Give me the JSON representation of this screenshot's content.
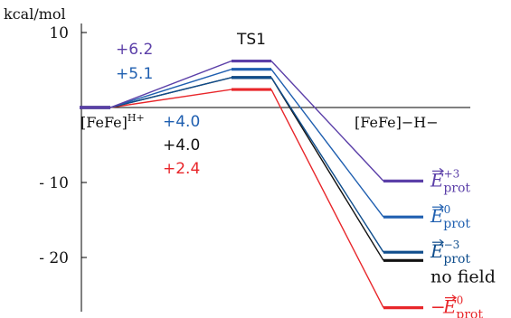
{
  "chart_data": {
    "type": "line",
    "title": "",
    "xlabel": "",
    "ylabel": "kcal/mol",
    "ylim": [
      -28,
      10
    ],
    "yticks": [
      {
        "value": 10,
        "label": "10"
      },
      {
        "value": -10,
        "label": "- 10"
      },
      {
        "value": -20,
        "label": "- 20"
      }
    ],
    "states": [
      "[FeFe]H+",
      "TS1",
      "[FeFe]−H−"
    ],
    "state_labels": {
      "reactant": {
        "base": "[FeFe]",
        "sup": "H+"
      },
      "ts": "TS1",
      "product": "[FeFe]−H−"
    },
    "series": [
      {
        "key": "p3",
        "values": [
          0,
          6.2,
          -9.8
        ],
        "color": "#5b3fa8",
        "label": {
          "vec": "E",
          "sup": "+3",
          "sub": "prot",
          "prefix": ""
        }
      },
      {
        "key": "p0",
        "values": [
          0,
          5.1,
          -14.6
        ],
        "color": "#1f5fb0",
        "label": {
          "vec": "E",
          "sup": "0",
          "sub": "prot",
          "prefix": ""
        }
      },
      {
        "key": "m3",
        "values": [
          0,
          4.0,
          -19.3
        ],
        "color": "#0f4d8c",
        "label": {
          "vec": "E",
          "sup": "−3",
          "sub": "prot",
          "prefix": ""
        }
      },
      {
        "key": "nf",
        "values": [
          0,
          4.0,
          -20.4
        ],
        "color": "#111111",
        "label": {
          "text": "no field"
        }
      },
      {
        "key": "neg",
        "values": [
          0,
          2.4,
          -26.7
        ],
        "color": "#e8262a",
        "label": {
          "vec": "E",
          "sup": "0",
          "sub": "prot",
          "prefix": "−"
        }
      }
    ],
    "annotations": {
      "ts_values": [
        {
          "text": "+6.2",
          "color": "#5b3fa8"
        },
        {
          "text": "+5.1",
          "color": "#1f5fb0"
        }
      ],
      "reactant_values": [
        {
          "text": "+4.0",
          "color": "#1f5fb0"
        },
        {
          "text": "+4.0",
          "color": "#111111"
        },
        {
          "text": "+2.4",
          "color": "#e8262a"
        }
      ]
    }
  }
}
